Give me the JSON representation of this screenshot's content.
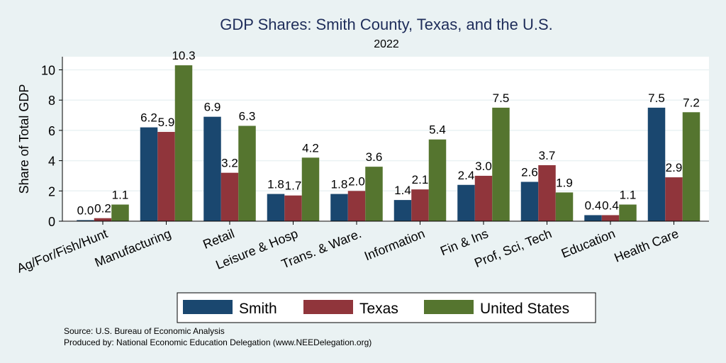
{
  "chart_data": {
    "type": "bar",
    "title": "GDP Shares: Smith County, Texas, and the U.S.",
    "subtitle": "2022",
    "xlabel": "",
    "ylabel": "Share of Total GDP",
    "ylim": [
      0,
      11
    ],
    "yticks": [
      0,
      2,
      4,
      6,
      8,
      10
    ],
    "grid": true,
    "legend_position": "bottom",
    "categories": [
      "Ag/For/Fish/Hunt",
      "Manufacturing",
      "Retail",
      "Leisure & Hosp",
      "Trans. & Ware.",
      "Information",
      "Fin & Ins",
      "Prof, Sci, Tech",
      "Education",
      "Health Care"
    ],
    "series": [
      {
        "name": "Smith",
        "color": "#1a476f",
        "values": [
          0.0,
          6.2,
          6.9,
          1.8,
          1.8,
          1.4,
          2.4,
          2.6,
          0.4,
          7.5
        ]
      },
      {
        "name": "Texas",
        "color": "#90353b",
        "values": [
          0.2,
          5.9,
          3.2,
          1.7,
          2.0,
          2.1,
          3.0,
          3.7,
          0.4,
          2.9
        ]
      },
      {
        "name": "United States",
        "color": "#55752f",
        "values": [
          1.1,
          10.3,
          6.3,
          4.2,
          3.6,
          5.4,
          7.5,
          1.9,
          1.1,
          7.2
        ]
      }
    ],
    "notes": [
      "Source: U.S. Bureau of Economic Analysis",
      "Produced by: National Economic Education Delegation (www.NEEDelegation.org)"
    ]
  }
}
